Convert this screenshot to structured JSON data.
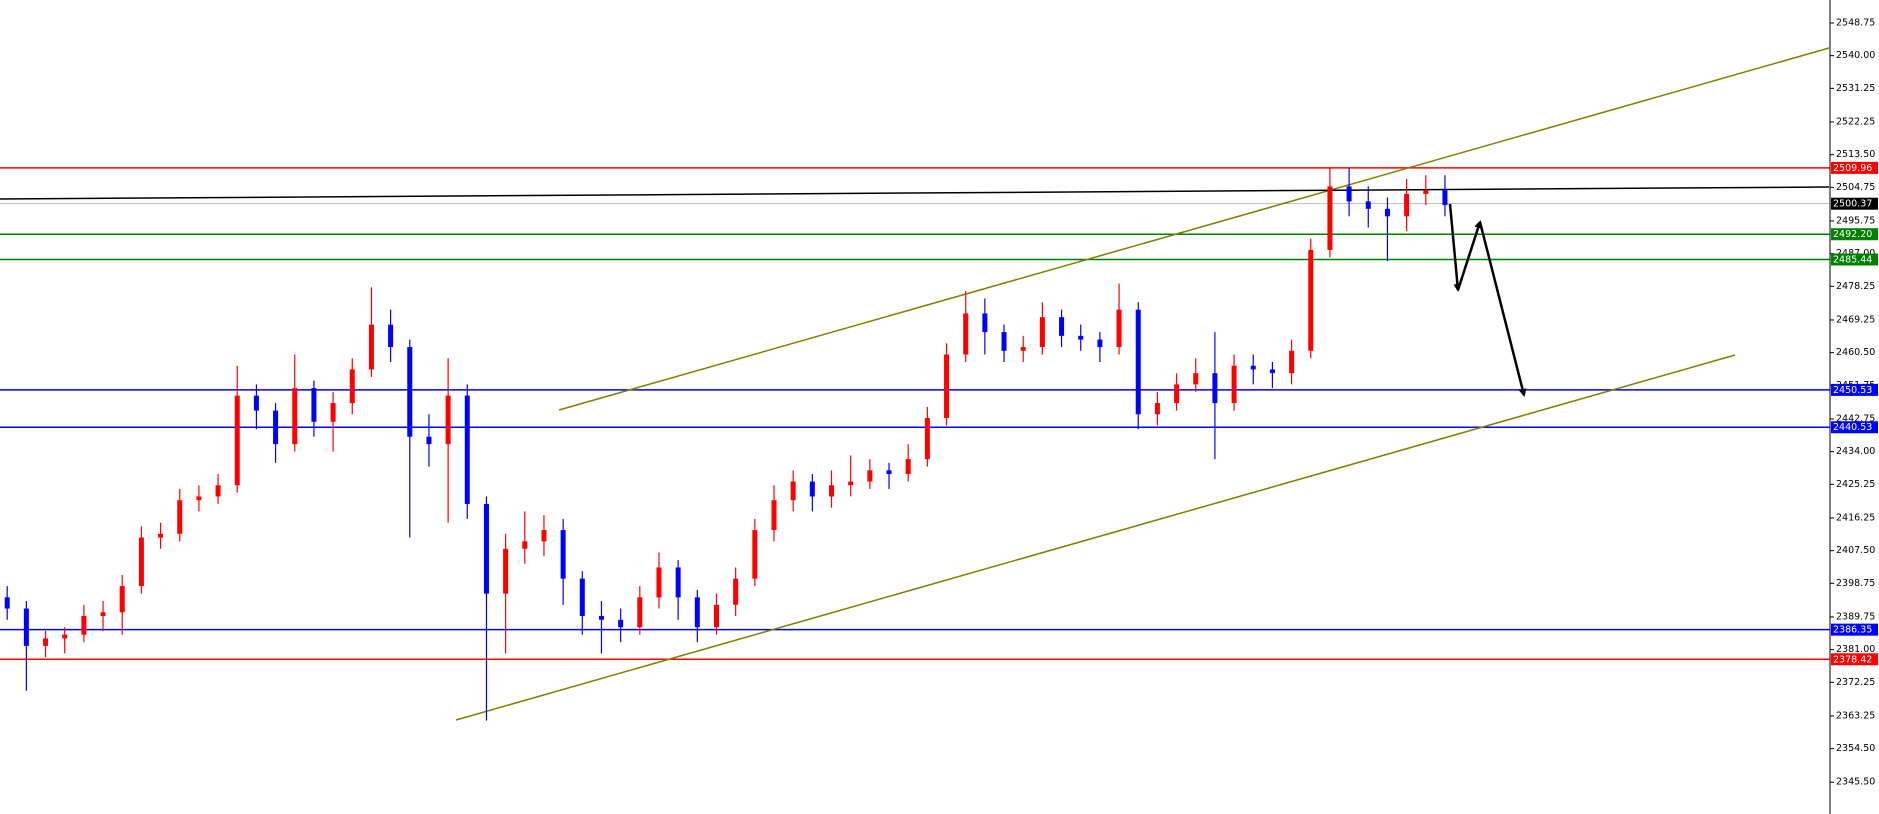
{
  "chart_data": {
    "type": "candlestick",
    "ylim": [
      2337.0,
      2554.9
    ],
    "yticks": [
      2548.75,
      {
        "value": 2540,
        "label": "2540.00"
      },
      2531.25,
      2522.25,
      {
        "value": 2513.5,
        "label": "2513.50"
      },
      2504.75,
      2495.75,
      {
        "value": 2487,
        "label": "2487.00"
      },
      2478.25,
      2469.25,
      {
        "value": 2460.5,
        "label": "2460.50"
      },
      2451.75,
      2442.75,
      {
        "value": 2434,
        "label": "2434.00"
      },
      2425.25,
      2416.25,
      {
        "value": 2407.5,
        "label": "2407.50"
      },
      2398.75,
      2389.75,
      {
        "value": 2381,
        "label": "2381.00"
      },
      2372.25,
      2363.25,
      {
        "value": 2354.5,
        "label": "2354.50"
      },
      {
        "value": 2345.5,
        "label": "2345.50"
      }
    ],
    "up_color": "#ff0000",
    "down_color": "#0000ff",
    "open": [
      2395,
      2392,
      2382,
      2384,
      2385,
      2390,
      2391,
      2398,
      2411,
      2412,
      2421,
      2422,
      2425,
      2449,
      2445,
      2436,
      2451,
      2442,
      2447,
      2456,
      2468,
      2462,
      2438,
      2436,
      2449,
      2420,
      2396,
      2408,
      2410,
      2413,
      2400,
      2390,
      2389,
      2387,
      2395,
      2403,
      2395,
      2387,
      2393,
      2400,
      2413,
      2421,
      2426,
      2422,
      2425,
      2426,
      2429,
      2428,
      2432,
      2443,
      2460,
      2471,
      2466,
      2461,
      2462,
      2470,
      2465,
      2464,
      2462,
      2472,
      2444,
      2447,
      2452,
      2455,
      2447,
      2457,
      2456,
      2455,
      2461,
      2488,
      2505,
      2501,
      2499,
      2497,
      2503,
      2504
    ],
    "high": [
      2398,
      2394,
      2386,
      2387,
      2393,
      2394,
      2401,
      2414,
      2415,
      2424,
      2425,
      2428,
      2457,
      2452,
      2447,
      2460,
      2453,
      2450,
      2459,
      2478,
      2472,
      2464,
      2444,
      2459,
      2452,
      2422,
      2412,
      2418,
      2417,
      2416,
      2402,
      2394,
      2392,
      2398,
      2407,
      2405,
      2397,
      2396,
      2403,
      2416,
      2425,
      2429,
      2428,
      2429,
      2433,
      2432,
      2431,
      2436,
      2446,
      2463,
      2477,
      2475,
      2468,
      2465,
      2474,
      2472,
      2468,
      2466,
      2479,
      2474,
      2450,
      2455,
      2459,
      2466,
      2460,
      2460,
      2458,
      2464,
      2491,
      2510,
      2510,
      2505,
      2502,
      2507,
      2508,
      2508
    ],
    "low": [
      2389,
      2370,
      2379,
      2380,
      2383,
      2386,
      2385,
      2396,
      2408,
      2410,
      2418,
      2420,
      2423,
      2440,
      2431,
      2434,
      2438,
      2434,
      2444,
      2454,
      2458,
      2411,
      2430,
      2415,
      2416,
      2362,
      2380,
      2404,
      2406,
      2393,
      2385,
      2380,
      2383,
      2385,
      2392,
      2389,
      2383,
      2385,
      2390,
      2398,
      2410,
      2418,
      2418,
      2419,
      2422,
      2424,
      2424,
      2426,
      2430,
      2441,
      2458,
      2460,
      2458,
      2458,
      2460,
      2462,
      2461,
      2458,
      2460,
      2440,
      2441,
      2445,
      2450,
      2432,
      2445,
      2452,
      2451,
      2452,
      2459,
      2486,
      2497,
      2494,
      2485,
      2493,
      2500,
      2497
    ],
    "close": [
      2392,
      2382,
      2384,
      2385,
      2390,
      2391,
      2398,
      2411,
      2412,
      2421,
      2422,
      2425,
      2449,
      2445,
      2436,
      2451,
      2442,
      2447,
      2456,
      2468,
      2462,
      2438,
      2436,
      2449,
      2420,
      2396,
      2408,
      2410,
      2413,
      2400,
      2390,
      2389,
      2387,
      2395,
      2403,
      2395,
      2387,
      2393,
      2400,
      2413,
      2421,
      2426,
      2422,
      2425,
      2426,
      2429,
      2428,
      2432,
      2443,
      2460,
      2471,
      2466,
      2461,
      2462,
      2470,
      2465,
      2464,
      2462,
      2472,
      2444,
      2447,
      2452,
      2455,
      2447,
      2457,
      2456,
      2455,
      2461,
      2488,
      2505,
      2501,
      2499,
      2497,
      2503,
      2504,
      2500
    ],
    "levels": [
      {
        "value": 2509.96,
        "color": "#ff0000"
      },
      {
        "value": 2500.37,
        "color": "#000000"
      },
      {
        "value": 2492.2,
        "label": "2492.20",
        "color": "#008000"
      },
      {
        "value": 2485.44,
        "color": "#008000"
      },
      {
        "value": 2450.53,
        "color": "#0000ff"
      },
      {
        "value": 2440.53,
        "color": "#0000ff"
      },
      {
        "value": 2386.35,
        "color": "#0000ff"
      },
      {
        "value": 2378.42,
        "color": "#ff0000"
      }
    ]
  }
}
